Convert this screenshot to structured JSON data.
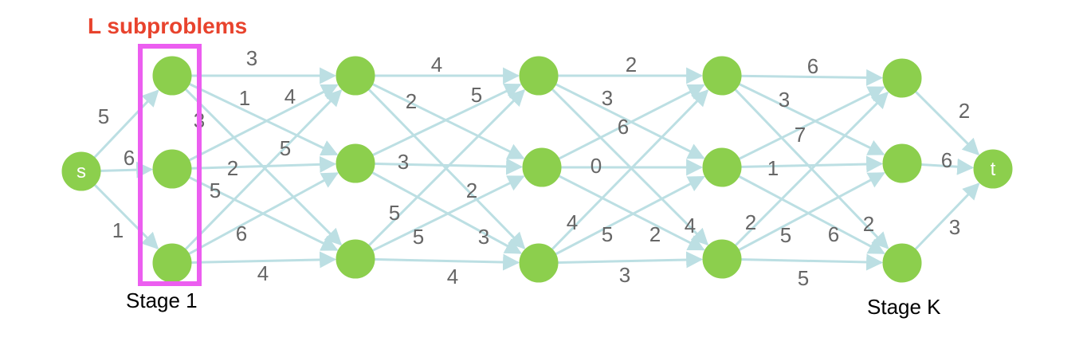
{
  "title": "L subproblems",
  "stage_first": "Stage 1",
  "stage_last": "Stage K",
  "colors": {
    "node": "#8ccf4d",
    "edge": "#bcdfe3",
    "box": "#ec5ef0",
    "title": "#e8432d",
    "weight": "#666666"
  },
  "nodes": [
    {
      "id": "s",
      "label": "s"
    },
    {
      "id": "n1a",
      "label": ""
    },
    {
      "id": "n1b",
      "label": ""
    },
    {
      "id": "n1c",
      "label": ""
    },
    {
      "id": "n2a",
      "label": ""
    },
    {
      "id": "n2b",
      "label": ""
    },
    {
      "id": "n2c",
      "label": ""
    },
    {
      "id": "n3a",
      "label": ""
    },
    {
      "id": "n3b",
      "label": ""
    },
    {
      "id": "n3c",
      "label": ""
    },
    {
      "id": "n4a",
      "label": ""
    },
    {
      "id": "n4b",
      "label": ""
    },
    {
      "id": "n4c",
      "label": ""
    },
    {
      "id": "n5a",
      "label": ""
    },
    {
      "id": "n5b",
      "label": ""
    },
    {
      "id": "n5c",
      "label": ""
    },
    {
      "id": "t",
      "label": "t"
    }
  ],
  "edges": [
    {
      "from": "s",
      "to": "n1a",
      "weight": "5"
    },
    {
      "from": "s",
      "to": "n1b",
      "weight": "6"
    },
    {
      "from": "s",
      "to": "n1c",
      "weight": "1"
    },
    {
      "from": "n1a",
      "to": "n2a",
      "weight": "3"
    },
    {
      "from": "n1a",
      "to": "n2b",
      "weight": "1"
    },
    {
      "from": "n1a",
      "to": "n2c",
      "weight": "3"
    },
    {
      "from": "n1b",
      "to": "n2a",
      "weight": "4"
    },
    {
      "from": "n1b",
      "to": "n2b",
      "weight": "2"
    },
    {
      "from": "n1b",
      "to": "n2c",
      "weight": "5"
    },
    {
      "from": "n1c",
      "to": "n2a",
      "weight": "5"
    },
    {
      "from": "n1c",
      "to": "n2b",
      "weight": "6"
    },
    {
      "from": "n1c",
      "to": "n2c",
      "weight": "4"
    },
    {
      "from": "n2a",
      "to": "n3a",
      "weight": "4"
    },
    {
      "from": "n2a",
      "to": "n3b",
      "weight": "2"
    },
    {
      "from": "n2a",
      "to": "n3c",
      "weight": "2"
    },
    {
      "from": "n2b",
      "to": "n3a",
      "weight": "5"
    },
    {
      "from": "n2b",
      "to": "n3b",
      "weight": "3"
    },
    {
      "from": "n2b",
      "to": "n3c",
      "weight": "3"
    },
    {
      "from": "n2c",
      "to": "n3a",
      "weight": "5"
    },
    {
      "from": "n2c",
      "to": "n3b",
      "weight": "5"
    },
    {
      "from": "n2c",
      "to": "n3c",
      "weight": "4"
    },
    {
      "from": "n3a",
      "to": "n4a",
      "weight": "2"
    },
    {
      "from": "n3a",
      "to": "n4b",
      "weight": "3"
    },
    {
      "from": "n3a",
      "to": "n4c",
      "weight": "4"
    },
    {
      "from": "n3b",
      "to": "n4a",
      "weight": "6"
    },
    {
      "from": "n3b",
      "to": "n4b",
      "weight": "0"
    },
    {
      "from": "n3b",
      "to": "n4c",
      "weight": "2"
    },
    {
      "from": "n3c",
      "to": "n4a",
      "weight": "4"
    },
    {
      "from": "n3c",
      "to": "n4b",
      "weight": "5"
    },
    {
      "from": "n3c",
      "to": "n4c",
      "weight": "3"
    },
    {
      "from": "n4a",
      "to": "n5a",
      "weight": "6"
    },
    {
      "from": "n4a",
      "to": "n5b",
      "weight": "3"
    },
    {
      "from": "n4a",
      "to": "n5c",
      "weight": "6"
    },
    {
      "from": "n4b",
      "to": "n5a",
      "weight": "7"
    },
    {
      "from": "n4b",
      "to": "n5b",
      "weight": "1"
    },
    {
      "from": "n4b",
      "to": "n5c",
      "weight": "2"
    },
    {
      "from": "n4c",
      "to": "n5a",
      "weight": "2"
    },
    {
      "from": "n4c",
      "to": "n5b",
      "weight": "5"
    },
    {
      "from": "n4c",
      "to": "n5c",
      "weight": "5"
    },
    {
      "from": "n5a",
      "to": "t",
      "weight": "2"
    },
    {
      "from": "n5b",
      "to": "t",
      "weight": "6"
    },
    {
      "from": "n5c",
      "to": "t",
      "weight": "3"
    }
  ]
}
